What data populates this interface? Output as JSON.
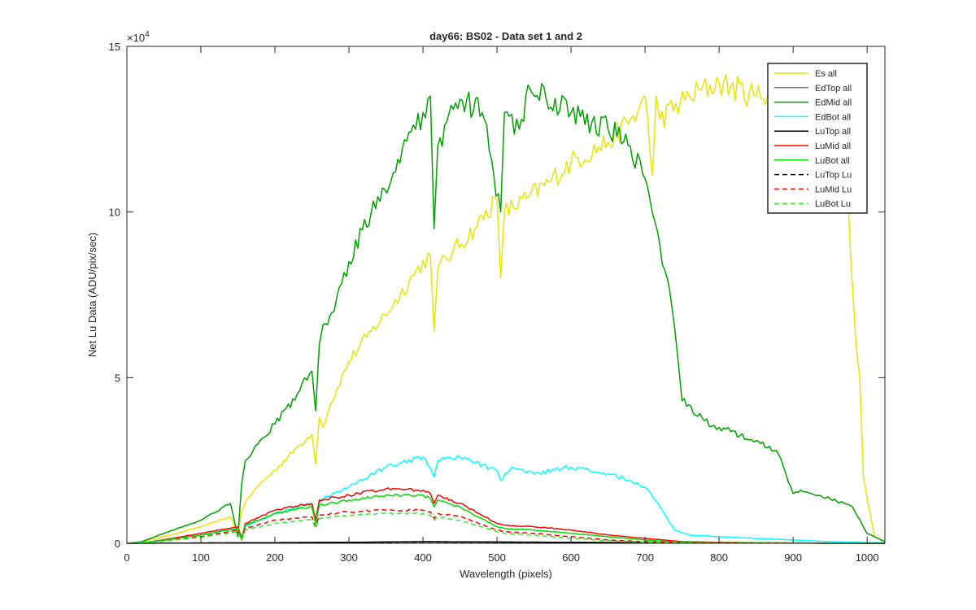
{
  "chart_data": {
    "type": "line",
    "title": "day66: BS02 - Data set 1 and 2",
    "xlabel": "Wavelength (pixels)",
    "ylabel": "Net Lu Data (ADU/pix/sec)",
    "xlim": [
      0,
      1024
    ],
    "ylim": [
      0,
      150000
    ],
    "xticks": [
      0,
      100,
      200,
      300,
      400,
      500,
      600,
      700,
      800,
      900,
      1000
    ],
    "yticks": [
      0,
      50000,
      100000,
      150000
    ],
    "ytick_labels": [
      "0",
      "5",
      "10",
      "15"
    ],
    "y_exponent_label": "×10",
    "y_exponent_power": "4",
    "grid": false,
    "legend_position": "top-right",
    "series": [
      {
        "name": "Es  all",
        "color": "#e6e600",
        "dash": "solid",
        "x": [
          0,
          20,
          50,
          100,
          140,
          150,
          155,
          165,
          180,
          200,
          230,
          250,
          255,
          260,
          265,
          275,
          300,
          330,
          360,
          390,
          410,
          415,
          420,
          440,
          470,
          500,
          505,
          510,
          540,
          570,
          600,
          650,
          690,
          700,
          710,
          715,
          720,
          760,
          800,
          850,
          900,
          950,
          975,
          985,
          990,
          995,
          1010,
          1024
        ],
        "y": [
          0,
          500,
          2000,
          5000,
          8000,
          3000,
          10000,
          14000,
          18000,
          22000,
          29000,
          33000,
          24000,
          38000,
          35000,
          42000,
          55000,
          64000,
          72000,
          82000,
          87000,
          64000,
          83000,
          88000,
          95000,
          104000,
          80000,
          100000,
          104000,
          109000,
          115000,
          121000,
          130000,
          135000,
          111000,
          135000,
          128000,
          135000,
          139000,
          135000,
          140000,
          138000,
          100000,
          60000,
          50000,
          20000,
          2000,
          500
        ]
      },
      {
        "name": "EdTop  all",
        "color": "#808080",
        "dash": "solid",
        "x": [
          0,
          100,
          200,
          300,
          400,
          500,
          600,
          700,
          800,
          900,
          1024
        ],
        "y": [
          0,
          100,
          200,
          300,
          400,
          350,
          250,
          150,
          100,
          50,
          0
        ]
      },
      {
        "name": "EdMid  all",
        "color": "#00a000",
        "dash": "solid",
        "x": [
          0,
          20,
          50,
          100,
          140,
          150,
          155,
          160,
          180,
          200,
          230,
          250,
          255,
          260,
          265,
          280,
          300,
          330,
          360,
          390,
          400,
          410,
          415,
          420,
          450,
          480,
          505,
          510,
          530,
          545,
          600,
          650,
          680,
          700,
          720,
          730,
          740,
          750,
          780,
          800,
          850,
          880,
          900,
          910,
          950,
          980,
          1000,
          1024
        ],
        "y": [
          0,
          500,
          3000,
          7000,
          12000,
          2000,
          18000,
          25000,
          31000,
          36000,
          45000,
          52000,
          40000,
          60000,
          66000,
          70000,
          85000,
          100000,
          112000,
          125000,
          130000,
          135000,
          95000,
          120000,
          134000,
          130000,
          100000,
          130000,
          125000,
          137000,
          130000,
          125000,
          120000,
          110000,
          90000,
          80000,
          65000,
          43000,
          37000,
          35000,
          31000,
          27000,
          15000,
          16000,
          13500,
          11000,
          3000,
          500
        ]
      },
      {
        "name": "EdBot  all",
        "color": "#00ffff",
        "dash": "solid",
        "x": [
          0,
          30,
          100,
          150,
          155,
          160,
          200,
          250,
          255,
          260,
          300,
          350,
          400,
          415,
          420,
          450,
          500,
          505,
          520,
          550,
          600,
          650,
          680,
          700,
          720,
          740,
          760,
          800,
          900,
          950,
          1000,
          1024
        ],
        "y": [
          0,
          500,
          2500,
          4500,
          2000,
          5000,
          9000,
          12000,
          7000,
          13000,
          17000,
          23000,
          26000,
          20000,
          25000,
          26000,
          22000,
          19000,
          23000,
          21000,
          23000,
          21000,
          19000,
          17000,
          11000,
          4000,
          2500,
          2000,
          1000,
          500,
          200,
          100
        ]
      },
      {
        "name": "LuTop  all",
        "color": "#000000",
        "dash": "solid",
        "x": [
          0,
          100,
          200,
          300,
          400,
          500,
          600,
          700,
          800,
          900,
          1024
        ],
        "y": [
          0,
          100,
          200,
          300,
          500,
          400,
          300,
          200,
          100,
          50,
          0
        ]
      },
      {
        "name": "LuMid  all",
        "color": "#ff0000",
        "dash": "solid",
        "x": [
          0,
          30,
          100,
          150,
          155,
          160,
          200,
          250,
          255,
          260,
          300,
          350,
          400,
          410,
          415,
          420,
          450,
          500,
          510,
          550,
          600,
          650,
          700,
          750,
          800,
          900,
          1024
        ],
        "y": [
          0,
          300,
          3000,
          5000,
          1500,
          6000,
          10000,
          12000,
          7000,
          13000,
          14500,
          16500,
          16000,
          15000,
          12000,
          14500,
          12000,
          6000,
          5500,
          5000,
          4000,
          2500,
          1500,
          500,
          300,
          100,
          0
        ]
      },
      {
        "name": "LuBot  all",
        "color": "#00dd00",
        "dash": "solid",
        "x": [
          0,
          30,
          100,
          150,
          155,
          160,
          200,
          250,
          255,
          260,
          300,
          350,
          400,
          410,
          415,
          420,
          450,
          500,
          510,
          550,
          600,
          650,
          700,
          750,
          800,
          900,
          1024
        ],
        "y": [
          0,
          300,
          2500,
          4500,
          1200,
          5500,
          9000,
          11000,
          6000,
          11500,
          13000,
          14500,
          14500,
          13500,
          11000,
          13000,
          11000,
          5000,
          4500,
          4000,
          3000,
          2000,
          1000,
          300,
          200,
          100,
          0
        ]
      },
      {
        "name": "LuTop  Lu",
        "color": "#000000",
        "dash": "dashed",
        "x": [
          0,
          100,
          200,
          300,
          400,
          500,
          600,
          700,
          800,
          900,
          1024
        ],
        "y": [
          0,
          100,
          200,
          300,
          400,
          350,
          250,
          150,
          100,
          50,
          0
        ]
      },
      {
        "name": "LuMid  Lu",
        "color": "#ff0000",
        "dash": "dashed",
        "x": [
          0,
          30,
          100,
          150,
          155,
          160,
          200,
          250,
          255,
          260,
          300,
          350,
          400,
          410,
          415,
          420,
          450,
          500,
          510,
          550,
          600,
          650,
          700,
          750,
          800,
          900,
          1024
        ],
        "y": [
          0,
          200,
          2000,
          4000,
          1000,
          4500,
          7000,
          8000,
          5000,
          8500,
          9500,
          10000,
          10000,
          9500,
          7500,
          9000,
          8000,
          4000,
          3500,
          3000,
          2000,
          1000,
          500,
          200,
          100,
          50,
          0
        ]
      },
      {
        "name": "LuBot  Lu",
        "color": "#33ee33",
        "dash": "dashed",
        "x": [
          0,
          30,
          100,
          150,
          155,
          160,
          200,
          250,
          255,
          260,
          300,
          350,
          400,
          410,
          415,
          420,
          450,
          500,
          510,
          550,
          600,
          650,
          700,
          750,
          800,
          900,
          1024
        ],
        "y": [
          0,
          200,
          1800,
          3500,
          900,
          4000,
          6000,
          7000,
          4500,
          7500,
          8500,
          9000,
          9000,
          8500,
          7000,
          8000,
          7000,
          3500,
          3000,
          2500,
          1500,
          800,
          400,
          150,
          80,
          30,
          0
        ]
      }
    ]
  }
}
